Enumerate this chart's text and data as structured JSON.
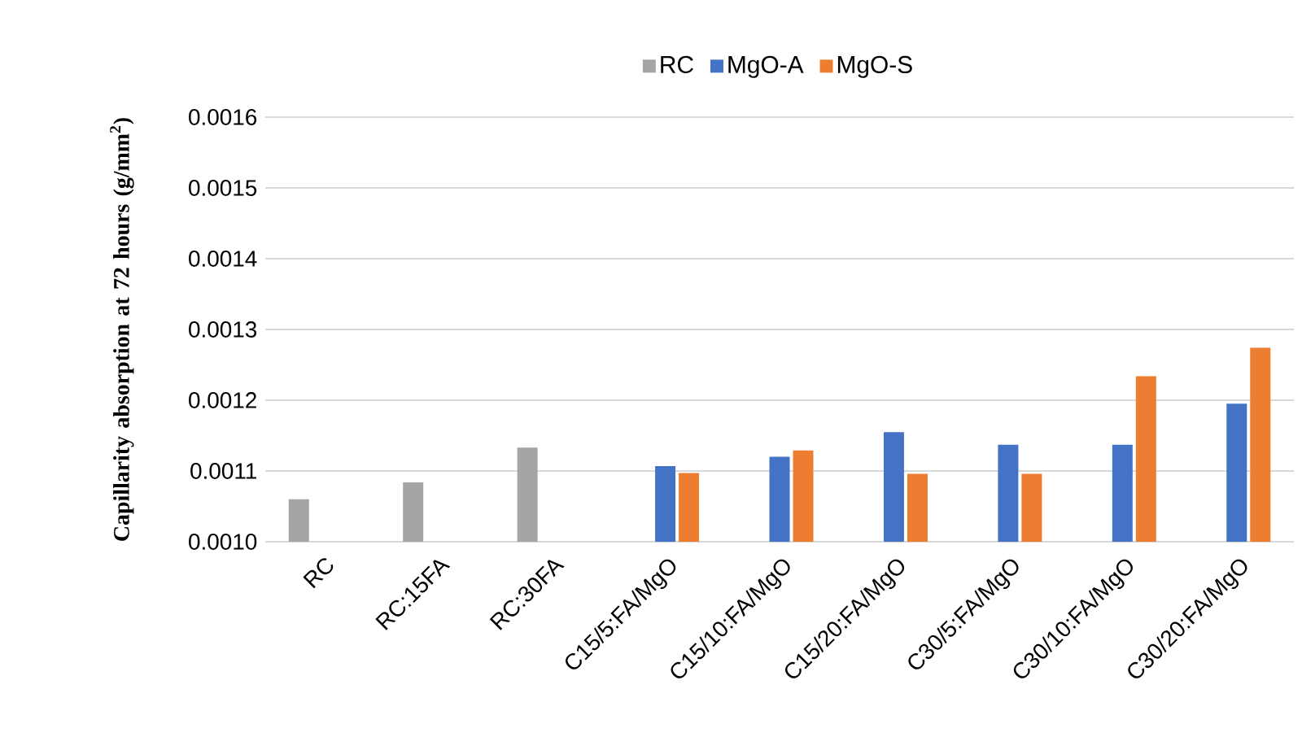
{
  "chart_data": {
    "type": "bar",
    "ylabel": "Capillarity absorption at 72 hours (g/mm$^{2}$)",
    "categories": [
      "RC",
      "RC:15FA",
      "RC:30FA",
      "C15/5:FA/MgO",
      "C15/10:FA/MgO",
      "C15/20:FA/MgO",
      "C30/5:FA/MgO",
      "C30/10:FA/MgO",
      "C30/20:FA/MgO"
    ],
    "series": [
      {
        "name": "RC",
        "color": "#a5a5a5",
        "values": [
          0.00106,
          0.001084,
          0.001133,
          null,
          null,
          null,
          null,
          null,
          null
        ]
      },
      {
        "name": "MgO-A",
        "color": "#4472c4",
        "values": [
          null,
          null,
          null,
          0.001107,
          0.00112,
          0.001155,
          0.001137,
          0.001137,
          0.001195
        ]
      },
      {
        "name": "MgO-S",
        "color": "#ed7d31",
        "values": [
          null,
          null,
          null,
          0.001097,
          0.001129,
          0.001096,
          0.001096,
          0.001234,
          0.001274
        ]
      }
    ],
    "ylim": [
      0.001,
      0.0016
    ],
    "yticks": [
      {
        "value": 0.001,
        "label": "0.0010"
      },
      {
        "value": 0.0011,
        "label": "0.0011"
      },
      {
        "value": 0.0012,
        "label": "0.0012"
      },
      {
        "value": 0.0013,
        "label": "0.0013"
      },
      {
        "value": 0.0014,
        "label": "0.0014"
      },
      {
        "value": 0.0015,
        "label": "0.0015"
      },
      {
        "value": 0.0016,
        "label": "0.0016"
      }
    ],
    "grid": "y",
    "legend": "top"
  }
}
